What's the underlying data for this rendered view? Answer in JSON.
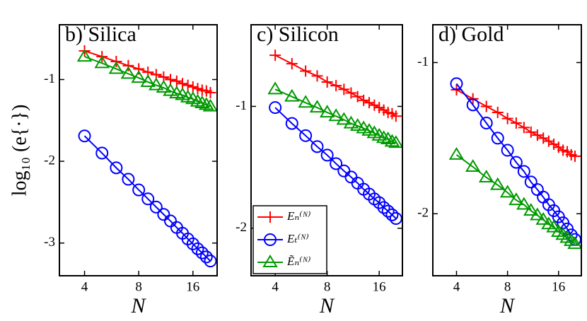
{
  "chart_data": [
    {
      "type": "line",
      "title": "b) Silica",
      "y_label": "log₁₀ (e{·})",
      "x_label": "N",
      "x": [
        4,
        5,
        6,
        7,
        8,
        9,
        10,
        11,
        12,
        13,
        14,
        15,
        16,
        17,
        18,
        19,
        20
      ],
      "xscale": "log",
      "xlim": [
        2.9,
        21.8
      ],
      "xticks": [
        4,
        8,
        16
      ],
      "ylim": [
        -3.4,
        -0.33
      ],
      "yticks": [
        -3,
        -2,
        -1
      ],
      "series": [
        {
          "name": "Eₙ⁽ᴺ⁾",
          "color": "#ff0000",
          "marker": "plus",
          "values": [
            -0.65,
            -0.72,
            -0.78,
            -0.83,
            -0.87,
            -0.91,
            -0.94,
            -0.97,
            -1.0,
            -1.02,
            -1.05,
            -1.07,
            -1.09,
            -1.11,
            -1.13,
            -1.14,
            -1.16
          ]
        },
        {
          "name": "Eₜ⁽ᴺ⁾",
          "color": "#0000ff",
          "marker": "circle",
          "values": [
            -1.69,
            -1.9,
            -2.08,
            -2.22,
            -2.35,
            -2.46,
            -2.56,
            -2.65,
            -2.73,
            -2.81,
            -2.88,
            -2.95,
            -3.01,
            -3.07,
            -3.12,
            -3.17,
            -3.22
          ]
        },
        {
          "name": "Ẽₙ⁽ᴺ⁾",
          "color": "#009900",
          "marker": "triangle",
          "values": [
            -0.72,
            -0.8,
            -0.87,
            -0.93,
            -0.98,
            -1.03,
            -1.07,
            -1.1,
            -1.14,
            -1.17,
            -1.19,
            -1.22,
            -1.24,
            -1.27,
            -1.29,
            -1.31,
            -1.33
          ]
        }
      ]
    },
    {
      "type": "line",
      "title": "c) Silicon",
      "x_label": "N",
      "legend": "lower left",
      "x": [
        4,
        5,
        6,
        7,
        8,
        9,
        10,
        11,
        12,
        13,
        14,
        15,
        16,
        17,
        18,
        19,
        20
      ],
      "xscale": "log",
      "xlim": [
        2.9,
        21.8
      ],
      "xticks": [
        4,
        8,
        16
      ],
      "ylim": [
        -2.39,
        -0.33
      ],
      "yticks": [
        -2,
        -1
      ],
      "series": [
        {
          "name": "Eₙ⁽ᴺ⁾",
          "color": "#ff0000",
          "marker": "plus",
          "values": [
            -0.58,
            -0.65,
            -0.71,
            -0.75,
            -0.8,
            -0.83,
            -0.86,
            -0.89,
            -0.92,
            -0.95,
            -0.97,
            -0.99,
            -1.01,
            -1.03,
            -1.05,
            -1.06,
            -1.08
          ]
        },
        {
          "name": "Eₜ⁽ᴺ⁾",
          "color": "#0000ff",
          "marker": "circle",
          "values": [
            -1.01,
            -1.14,
            -1.24,
            -1.33,
            -1.4,
            -1.47,
            -1.53,
            -1.58,
            -1.63,
            -1.68,
            -1.72,
            -1.76,
            -1.79,
            -1.83,
            -1.86,
            -1.89,
            -1.92
          ]
        },
        {
          "name": "Ẽₙ⁽ᴺ⁾",
          "color": "#009900",
          "marker": "triangle",
          "values": [
            -0.86,
            -0.92,
            -0.97,
            -1.01,
            -1.05,
            -1.08,
            -1.11,
            -1.14,
            -1.16,
            -1.18,
            -1.2,
            -1.22,
            -1.24,
            -1.26,
            -1.27,
            -1.29,
            -1.3
          ]
        }
      ]
    },
    {
      "type": "line",
      "title": "d) Gold",
      "x_label": "N",
      "x": [
        4,
        5,
        6,
        7,
        8,
        9,
        10,
        11,
        12,
        13,
        14,
        15,
        16,
        17,
        18,
        19,
        20
      ],
      "xscale": "log",
      "xlim": [
        2.9,
        21.8
      ],
      "xticks": [
        4,
        8,
        16
      ],
      "ylim": [
        -2.41,
        -0.75
      ],
      "yticks": [
        -2,
        -1
      ],
      "series": [
        {
          "name": "Eₙ⁽ᴺ⁾",
          "color": "#ff0000",
          "marker": "plus",
          "values": [
            -1.18,
            -1.24,
            -1.29,
            -1.33,
            -1.37,
            -1.4,
            -1.43,
            -1.46,
            -1.48,
            -1.5,
            -1.52,
            -1.54,
            -1.56,
            -1.58,
            -1.59,
            -1.61,
            -1.62
          ]
        },
        {
          "name": "Eₜ⁽ᴺ⁾",
          "color": "#0000ff",
          "marker": "circle",
          "values": [
            -1.14,
            -1.28,
            -1.4,
            -1.5,
            -1.58,
            -1.66,
            -1.72,
            -1.79,
            -1.84,
            -1.89,
            -1.94,
            -1.98,
            -2.02,
            -2.06,
            -2.1,
            -2.14,
            -2.17
          ]
        },
        {
          "name": "Ẽₙ⁽ᴺ⁾",
          "color": "#009900",
          "marker": "triangle",
          "values": [
            -1.61,
            -1.69,
            -1.76,
            -1.81,
            -1.86,
            -1.91,
            -1.94,
            -1.98,
            -2.01,
            -2.04,
            -2.07,
            -2.09,
            -2.12,
            -2.14,
            -2.16,
            -2.18,
            -2.2
          ]
        }
      ]
    }
  ]
}
